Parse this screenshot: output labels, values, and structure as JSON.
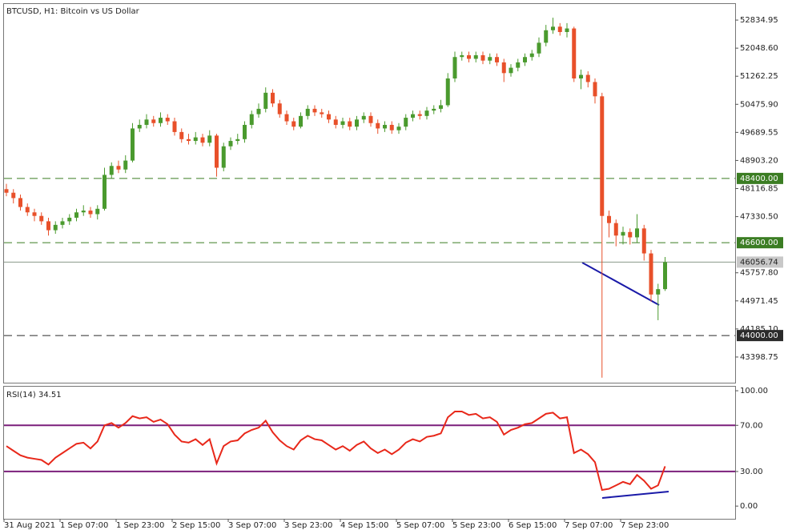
{
  "chart_data": [
    {
      "type": "candlestick",
      "title": "BTCUSD, H1:  Bitcoin vs US Dollar",
      "open": [
        48100,
        48000,
        47850,
        47600,
        47450,
        47350,
        47200,
        46950,
        47100,
        47200,
        47300,
        47450,
        47500,
        47400,
        47550,
        48500,
        48750,
        48650,
        48900,
        49800,
        49900,
        50050,
        49950,
        50100,
        50000,
        49700,
        49500,
        49450,
        49550,
        49400,
        49600,
        48700,
        49300,
        49450,
        49500,
        49900,
        50200,
        50350,
        50800,
        50500,
        50200,
        50000,
        49850,
        50150,
        50350,
        50250,
        50200,
        50050,
        49900,
        50000,
        49850,
        50050,
        50150,
        49950,
        49800,
        49900,
        49750,
        49850,
        50100,
        50200,
        50150,
        50300,
        50350,
        50450,
        51200,
        51800,
        51850,
        51750,
        51850,
        51700,
        51800,
        51650,
        51350,
        51500,
        51650,
        51800,
        51900,
        52200,
        52550,
        52650,
        52500,
        52600,
        51200,
        51300,
        51100,
        50700,
        47350,
        47150,
        46800,
        46900,
        46750,
        47000,
        46300,
        45150,
        45300
      ],
      "high": [
        48250,
        48100,
        47950,
        47700,
        47550,
        47450,
        47300,
        47200,
        47300,
        47400,
        47550,
        47650,
        47600,
        47650,
        48700,
        48850,
        48900,
        49050,
        49950,
        50050,
        50200,
        50150,
        50250,
        50200,
        50100,
        49800,
        49650,
        49700,
        49650,
        49750,
        49650,
        49400,
        49550,
        49650,
        50000,
        50300,
        50500,
        50950,
        50900,
        50600,
        50300,
        50100,
        50250,
        50450,
        50450,
        50350,
        50300,
        50150,
        50100,
        50100,
        50150,
        50250,
        50250,
        50050,
        50000,
        50000,
        49950,
        50200,
        50300,
        50300,
        50400,
        50450,
        50600,
        51350,
        51950,
        51950,
        51950,
        51950,
        51950,
        51900,
        51900,
        51750,
        51600,
        51750,
        51900,
        52000,
        52350,
        52700,
        52900,
        52750,
        52750,
        52650,
        51450,
        51400,
        51200,
        50800,
        47500,
        47250,
        47050,
        47000,
        47400,
        47100,
        46400,
        45450,
        46200
      ],
      "low": [
        47900,
        47700,
        47500,
        47350,
        47200,
        47100,
        46800,
        46850,
        47000,
        47100,
        47200,
        47350,
        47300,
        47250,
        47500,
        48400,
        48550,
        48550,
        48850,
        49700,
        49800,
        49850,
        49850,
        49900,
        49600,
        49400,
        49350,
        49350,
        49300,
        49300,
        48450,
        48600,
        49200,
        49350,
        49400,
        49800,
        50100,
        50250,
        50400,
        50100,
        49900,
        49750,
        49800,
        50050,
        50150,
        50100,
        49950,
        49800,
        49800,
        49750,
        49750,
        49950,
        49850,
        49650,
        49700,
        49650,
        49650,
        49750,
        50000,
        50050,
        50050,
        50200,
        50250,
        50400,
        51100,
        51700,
        51650,
        51650,
        51600,
        51600,
        51550,
        51100,
        51250,
        51400,
        51550,
        51700,
        51800,
        52100,
        52450,
        52400,
        52350,
        51100,
        50900,
        50950,
        50500,
        42820,
        46750,
        46500,
        46550,
        46550,
        46600,
        46100,
        44950,
        44430,
        45250
      ],
      "close": [
        48000,
        47850,
        47600,
        47450,
        47350,
        47200,
        46950,
        47100,
        47200,
        47300,
        47450,
        47500,
        47400,
        47550,
        48500,
        48750,
        48650,
        48900,
        49800,
        49900,
        50050,
        49950,
        50100,
        50000,
        49700,
        49500,
        49450,
        49550,
        49400,
        49600,
        48700,
        49300,
        49450,
        49500,
        49900,
        50200,
        50350,
        50800,
        50500,
        50200,
        50000,
        49850,
        50150,
        50350,
        50250,
        50200,
        50050,
        49900,
        50000,
        49850,
        50050,
        50150,
        49950,
        49800,
        49900,
        49750,
        49850,
        50100,
        50200,
        50150,
        50300,
        50350,
        50450,
        51200,
        51800,
        51850,
        51750,
        51850,
        51700,
        51800,
        51650,
        51350,
        51500,
        51650,
        51800,
        51900,
        52200,
        52550,
        52650,
        52500,
        52600,
        51200,
        51300,
        51100,
        50700,
        47350,
        47150,
        46800,
        46900,
        46750,
        47000,
        46300,
        45150,
        45300,
        46056.74
      ],
      "up_color": "#4a9a2e",
      "down_color": "#e8502a",
      "ylim": [
        42680,
        53285
      ],
      "yticks": [
        52834.95,
        {
          "value": 52048.6,
          "label": "52048.60"
        },
        51262.25,
        {
          "value": 50475.9,
          "label": "50475.90"
        },
        49689.55,
        {
          "value": 48903.2,
          "label": "48903.20"
        },
        48116.85,
        {
          "value": 47330.5,
          "label": "47330.50"
        },
        {
          "value": 45757.8,
          "label": "45757.80"
        },
        44971.45,
        {
          "value": 44185.1,
          "label": "44185.10"
        },
        43398.75
      ],
      "levels": [
        {
          "value": 48400,
          "label": "48400.00",
          "color": "#3b7d23"
        },
        {
          "value": 46600,
          "label": "46600.00",
          "color": "#3b7d23"
        },
        {
          "value": 44000,
          "label": "44000.00",
          "color": "#2b2b2b"
        }
      ],
      "last_price": 46056.74
    },
    {
      "type": "line",
      "title": "RSI(14) 34.51",
      "color": "#e8281a",
      "level_color": "#7b1f7b",
      "categories": [
        "31 Aug 2021",
        null,
        null,
        null,
        null,
        null,
        null,
        null,
        "1 Sep 07:00",
        null,
        null,
        null,
        null,
        null,
        null,
        null,
        "1 Sep 23:00",
        null,
        null,
        null,
        null,
        null,
        null,
        null,
        "2 Sep 15:00",
        null,
        null,
        null,
        null,
        null,
        null,
        null,
        "3 Sep 07:00",
        null,
        null,
        null,
        null,
        null,
        null,
        null,
        "3 Sep 23:00",
        null,
        null,
        null,
        null,
        null,
        null,
        null,
        "4 Sep 15:00",
        null,
        null,
        null,
        null,
        null,
        null,
        null,
        "5 Sep 07:00",
        null,
        null,
        null,
        null,
        null,
        null,
        null,
        "5 Sep 23:00",
        null,
        null,
        null,
        null,
        null,
        null,
        null,
        "6 Sep 15:00",
        null,
        null,
        null,
        null,
        null,
        null,
        null,
        "7 Sep 07:00",
        null,
        null,
        null,
        null,
        null,
        null,
        null,
        "7 Sep 23:00",
        null,
        null,
        null,
        null,
        null,
        null
      ],
      "values": [
        52,
        48,
        44,
        42,
        41,
        40,
        36,
        42,
        46,
        50,
        54,
        55,
        50,
        56,
        70,
        72,
        68,
        72,
        78,
        76,
        77,
        73,
        75,
        71,
        62,
        56,
        55,
        58,
        53,
        58,
        37,
        52,
        56,
        57,
        63,
        66,
        68,
        74,
        64,
        57,
        52,
        49,
        57,
        61,
        58,
        57,
        53,
        49,
        52,
        48,
        53,
        56,
        50,
        46,
        49,
        45,
        49,
        55,
        58,
        56,
        60,
        61,
        63,
        77,
        82,
        82,
        79,
        80,
        76,
        77,
        73,
        62,
        66,
        68,
        71,
        72,
        76,
        80,
        81,
        76,
        77,
        46,
        49,
        45,
        38,
        14,
        15,
        18,
        21,
        19,
        27,
        22,
        15,
        18,
        34.51
      ],
      "ylim": [
        -11,
        103.5
      ],
      "yticks": [
        {
          "value": 100,
          "label": "100.00"
        },
        {
          "value": 70,
          "label": "70.00"
        },
        {
          "value": 30,
          "label": "30.00"
        },
        {
          "value": 0,
          "label": "0.00"
        }
      ],
      "levels": [
        70,
        30
      ]
    }
  ]
}
